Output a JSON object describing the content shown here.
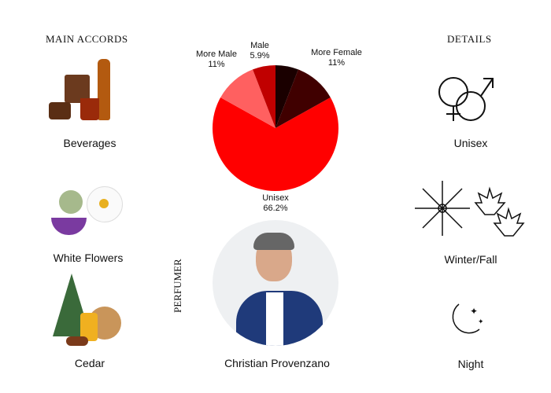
{
  "main_accords": {
    "title": "MAIN ACCORDS",
    "items": [
      {
        "label": "Beverages"
      },
      {
        "label": "White Flowers"
      },
      {
        "label": "Cedar"
      }
    ]
  },
  "details": {
    "title": "DETAILS",
    "items": [
      {
        "label": "Unisex",
        "icon": "gender-symbols-icon"
      },
      {
        "label": "Winter/Fall",
        "icon": "snowflake-maple-leaf-icon"
      },
      {
        "label": "Night",
        "icon": "moon-stars-icon"
      }
    ]
  },
  "perfumer": {
    "title": "PERFUMER",
    "name": "Christian Provenzano"
  },
  "chart_data": {
    "type": "pie",
    "start": "top, clockwise",
    "slices": [
      {
        "name": "",
        "value": 5.9,
        "color": "#1a0000",
        "label": ""
      },
      {
        "name": "More Female",
        "value": 11,
        "color": "#400000",
        "label": "11%"
      },
      {
        "name": "Unisex",
        "value": 66.2,
        "color": "#ff0000",
        "label": "66.2%"
      },
      {
        "name": "More Male",
        "value": 11,
        "color": "#ff6060",
        "label": "11%"
      },
      {
        "name": "Male",
        "value": 5.9,
        "color": "#c00000",
        "label": "5.9%"
      }
    ]
  }
}
